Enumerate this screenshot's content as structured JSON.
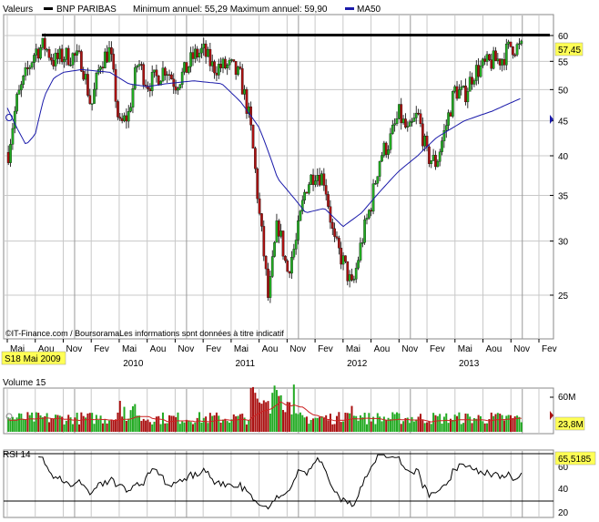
{
  "colors": {
    "up": "#22aa22",
    "down": "#aa1111",
    "ma": "#1a1aaa",
    "grid": "#c8c8c8",
    "highlight": "#ffff55",
    "volume_ma": "#cc2222",
    "resistance": "#000000",
    "rsi": "#000000"
  },
  "price_panel": {
    "legend": {
      "series_label": "Valeurs",
      "ticker": "BNP PARIBAS",
      "stats": "Minimum annuel: 55,29 Maximum annuel: 59,90",
      "ma_label": "MA50"
    },
    "last_value": "57,45",
    "source": "©IT-Finance.com / BoursoramaLes informations sont données à titre indicatif",
    "x_date_label": "S18 Mai 2009",
    "month_labels": [
      "Mai",
      "Aou",
      "Nov",
      "Fev",
      "Mai",
      "Aou",
      "Nov",
      "Fev",
      "Mai",
      "Aou",
      "Nov",
      "Fev",
      "Mai",
      "Aou",
      "Nov",
      "Fev",
      "Mai",
      "Aou",
      "Nov",
      "Fev"
    ],
    "year_labels": [
      "2010",
      "2011",
      "2012",
      "2013"
    ],
    "y_ticks": [
      "60",
      "55",
      "50",
      "45",
      "40",
      "35",
      "30",
      "25"
    ]
  },
  "volume_panel": {
    "title": "Volume 15",
    "last_value": "23,8M",
    "y_ticks": [
      "60M"
    ]
  },
  "rsi_panel": {
    "title": "RSI 14",
    "last_value": "65,5185",
    "y_ticks": [
      "60",
      "40",
      "20"
    ]
  },
  "chart_data": {
    "type": "candlestick",
    "title": "BNP PARIBAS",
    "ylim": [
      20,
      63
    ],
    "y_scale": "log",
    "resistance_level": 60,
    "price_path": [
      [
        "2009-05",
        39.5
      ],
      [
        "2009-06",
        48
      ],
      [
        "2009-08",
        57
      ],
      [
        "2009-09",
        58
      ],
      [
        "2009-10",
        55
      ],
      [
        "2009-11",
        56
      ],
      [
        "2009-12",
        56
      ],
      [
        "2010-01",
        55
      ],
      [
        "2010-02",
        47
      ],
      [
        "2010-03",
        55
      ],
      [
        "2010-04",
        57
      ],
      [
        "2010-05",
        44
      ],
      [
        "2010-06",
        46
      ],
      [
        "2010-07",
        55
      ],
      [
        "2010-08",
        51
      ],
      [
        "2010-09",
        52
      ],
      [
        "2010-10",
        54
      ],
      [
        "2010-11",
        51
      ],
      [
        "2010-12",
        53
      ],
      [
        "2011-01",
        56
      ],
      [
        "2011-02",
        57
      ],
      [
        "2011-03",
        54
      ],
      [
        "2011-04",
        54
      ],
      [
        "2011-05",
        54
      ],
      [
        "2011-06",
        52
      ],
      [
        "2011-07",
        45
      ],
      [
        "2011-08",
        33
      ],
      [
        "2011-09",
        24.5
      ],
      [
        "2011-10",
        32
      ],
      [
        "2011-11",
        27
      ],
      [
        "2011-12",
        30
      ],
      [
        "2012-01",
        36
      ],
      [
        "2012-02",
        38
      ],
      [
        "2012-03",
        37
      ],
      [
        "2012-04",
        30
      ],
      [
        "2012-05",
        28
      ],
      [
        "2012-06",
        25.5
      ],
      [
        "2012-07",
        30
      ],
      [
        "2012-08",
        34
      ],
      [
        "2012-09",
        40
      ],
      [
        "2012-10",
        42
      ],
      [
        "2012-11",
        46
      ],
      [
        "2012-12",
        43
      ],
      [
        "2013-01",
        46
      ],
      [
        "2013-02",
        40
      ],
      [
        "2013-03",
        39
      ],
      [
        "2013-04",
        44
      ],
      [
        "2013-05",
        50
      ],
      [
        "2013-06",
        49
      ],
      [
        "2013-07",
        53
      ],
      [
        "2013-08",
        54
      ],
      [
        "2013-09",
        55
      ],
      [
        "2013-10",
        55.5
      ],
      [
        "2013-11",
        58
      ],
      [
        "2013-12",
        57.45
      ]
    ],
    "ma50_path": [
      [
        "2009-05",
        47
      ],
      [
        "2009-06",
        44
      ],
      [
        "2009-07",
        41.5
      ],
      [
        "2009-08",
        43
      ],
      [
        "2009-09",
        49
      ],
      [
        "2009-10",
        52
      ],
      [
        "2009-11",
        53
      ],
      [
        "2010-01",
        53.5
      ],
      [
        "2010-04",
        53
      ],
      [
        "2010-06",
        51
      ],
      [
        "2010-08",
        50.5
      ],
      [
        "2010-10",
        51
      ],
      [
        "2011-01",
        51.5
      ],
      [
        "2011-04",
        51
      ],
      [
        "2011-06",
        48
      ],
      [
        "2011-08",
        44
      ],
      [
        "2011-10",
        37
      ],
      [
        "2012-01",
        33
      ],
      [
        "2012-03",
        33.5
      ],
      [
        "2012-05",
        31.5
      ],
      [
        "2012-07",
        33
      ],
      [
        "2012-09",
        35.5
      ],
      [
        "2012-11",
        38
      ],
      [
        "2013-01",
        40
      ],
      [
        "2013-03",
        42.5
      ],
      [
        "2013-06",
        45
      ],
      [
        "2013-09",
        46.5
      ],
      [
        "2013-12",
        48.5
      ]
    ]
  }
}
